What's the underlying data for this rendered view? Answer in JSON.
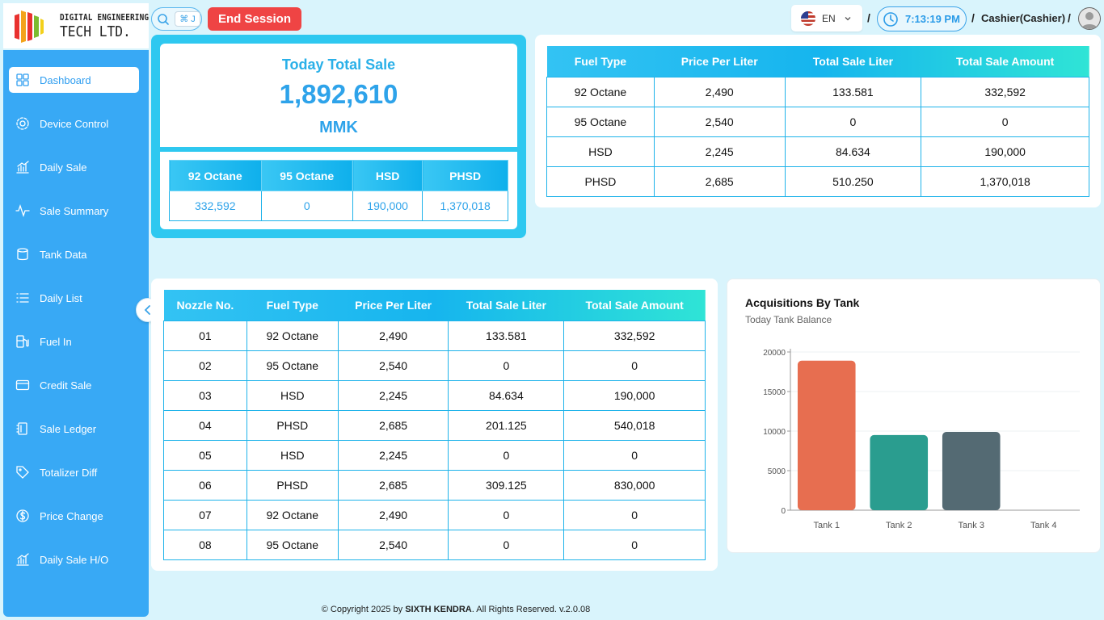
{
  "brand": {
    "line1": "DIGITAL ENGINEERING",
    "line2": "TECH LTD."
  },
  "header": {
    "search_shortcut": "⌘ J",
    "end_session": "End Session",
    "language": "EN",
    "separator": "/",
    "time": "7:13:19 PM",
    "user": "Cashier(Cashier)"
  },
  "sidebar": {
    "items": [
      {
        "label": "Dashboard",
        "icon": "dashboard-icon"
      },
      {
        "label": "Device Control",
        "icon": "gear-icon"
      },
      {
        "label": "Daily Sale",
        "icon": "bar-chart-icon"
      },
      {
        "label": "Sale Summary",
        "icon": "activity-icon"
      },
      {
        "label": "Tank Data",
        "icon": "database-icon"
      },
      {
        "label": "Daily List",
        "icon": "list-icon"
      },
      {
        "label": "Fuel In",
        "icon": "fuel-icon"
      },
      {
        "label": "Credit Sale",
        "icon": "credit-card-icon"
      },
      {
        "label": "Sale Ledger",
        "icon": "ledger-icon"
      },
      {
        "label": "Totalizer Diff",
        "icon": "tag-icon"
      },
      {
        "label": "Price Change",
        "icon": "price-icon"
      },
      {
        "label": "Daily Sale H/O",
        "icon": "bar-chart-icon"
      }
    ]
  },
  "total": {
    "title": "Today Total Sale",
    "value": "1,892,610",
    "currency": "MMK",
    "headers": [
      "92 Octane",
      "95 Octane",
      "HSD",
      "PHSD"
    ],
    "values": [
      "332,592",
      "0",
      "190,000",
      "1,370,018"
    ]
  },
  "fuel_summary": {
    "headers": [
      "Fuel Type",
      "Price Per Liter",
      "Total Sale Liter",
      "Total Sale Amount"
    ],
    "rows": [
      [
        "92 Octane",
        "2,490",
        "133.581",
        "332,592"
      ],
      [
        "95 Octane",
        "2,540",
        "0",
        "0"
      ],
      [
        "HSD",
        "2,245",
        "84.634",
        "190,000"
      ],
      [
        "PHSD",
        "2,685",
        "510.250",
        "1,370,018"
      ]
    ]
  },
  "nozzles": {
    "headers": [
      "Nozzle No.",
      "Fuel Type",
      "Price Per Liter",
      "Total Sale Liter",
      "Total Sale Amount"
    ],
    "rows": [
      [
        "01",
        "92 Octane",
        "2,490",
        "133.581",
        "332,592"
      ],
      [
        "02",
        "95 Octane",
        "2,540",
        "0",
        "0"
      ],
      [
        "03",
        "HSD",
        "2,245",
        "84.634",
        "190,000"
      ],
      [
        "04",
        "PHSD",
        "2,685",
        "201.125",
        "540,018"
      ],
      [
        "05",
        "HSD",
        "2,245",
        "0",
        "0"
      ],
      [
        "06",
        "PHSD",
        "2,685",
        "309.125",
        "830,000"
      ],
      [
        "07",
        "92 Octane",
        "2,490",
        "0",
        "0"
      ],
      [
        "08",
        "95 Octane",
        "2,540",
        "0",
        "0"
      ]
    ]
  },
  "chart": {
    "title": "Acquisitions By Tank",
    "subtitle": "Today Tank Balance"
  },
  "chart_data": {
    "type": "bar",
    "categories": [
      "Tank 1",
      "Tank 2",
      "Tank 3",
      "Tank 4"
    ],
    "values": [
      18900,
      9500,
      9900,
      0
    ],
    "colors": [
      "#e76e50",
      "#2a9d8f",
      "#546a73",
      "#e9c46a"
    ],
    "ylim": [
      0,
      20000
    ],
    "yticks": [
      0,
      5000,
      10000,
      15000,
      20000
    ],
    "grid": true
  },
  "footer": {
    "prefix": "© Copyright 2025 by ",
    "company": "SIXTH KENDRA",
    "suffix": ". All Rights Reserved. v.2.0.08"
  }
}
